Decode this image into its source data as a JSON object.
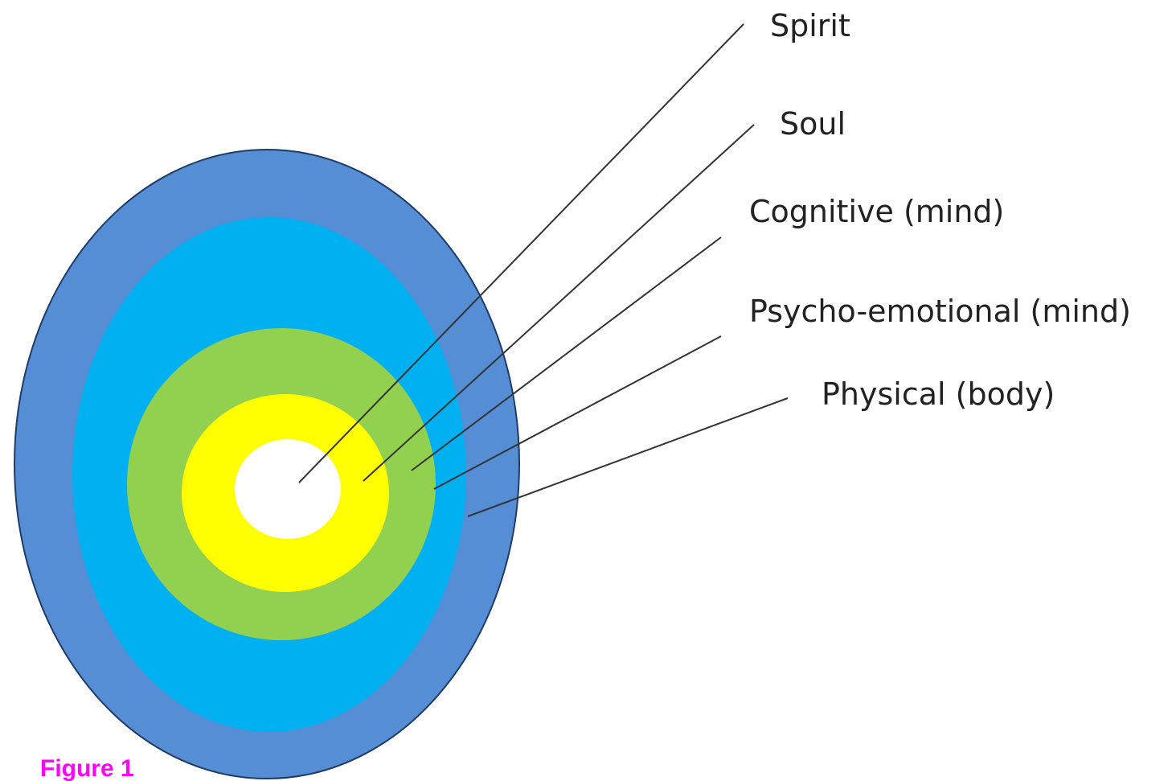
{
  "layers": [
    {
      "label": "Spirit"
    },
    {
      "label": "Soul"
    },
    {
      "label": "Cognitive (mind)"
    },
    {
      "label": "Psycho-emotional (mind)"
    },
    {
      "label": "Physical (body)"
    }
  ],
  "caption": "Figure 1"
}
